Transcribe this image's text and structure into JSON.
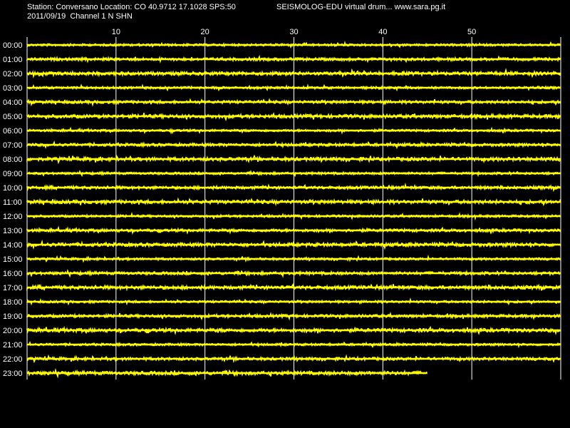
{
  "header": {
    "station": "Station: Conversano Location: CO 40.9712 17.1028 SPS:50",
    "brand": "SEISMOLOG-EDU virtual drum... www.sara.pg.it",
    "date_channel": "2011/09/19  Channel 1 N SHN"
  },
  "colors": {
    "background": "#000000",
    "trace": "#ffff00",
    "grid": "#ffffff",
    "text": "#ffffff"
  },
  "chart_data": {
    "type": "line",
    "title": "",
    "xlabel": "",
    "ylabel": "",
    "grid": true,
    "x_unit_note": "minutes",
    "xlim": [
      0,
      60
    ],
    "x_ticks": [
      10,
      20,
      30,
      40,
      50
    ],
    "rows": [
      {
        "label": "00:00",
        "end_minute": 60
      },
      {
        "label": "01:00",
        "end_minute": 60
      },
      {
        "label": "02:00",
        "end_minute": 60
      },
      {
        "label": "03:00",
        "end_minute": 60
      },
      {
        "label": "04:00",
        "end_minute": 60
      },
      {
        "label": "05:00",
        "end_minute": 60
      },
      {
        "label": "06:00",
        "end_minute": 60
      },
      {
        "label": "07:00",
        "end_minute": 60
      },
      {
        "label": "08:00",
        "end_minute": 60
      },
      {
        "label": "09:00",
        "end_minute": 60
      },
      {
        "label": "10:00",
        "end_minute": 60
      },
      {
        "label": "11:00",
        "end_minute": 60
      },
      {
        "label": "12:00",
        "end_minute": 60
      },
      {
        "label": "13:00",
        "end_minute": 60
      },
      {
        "label": "14:00",
        "end_minute": 60
      },
      {
        "label": "15:00",
        "end_minute": 60
      },
      {
        "label": "16:00",
        "end_minute": 60
      },
      {
        "label": "17:00",
        "end_minute": 60
      },
      {
        "label": "18:00",
        "end_minute": 60
      },
      {
        "label": "19:00",
        "end_minute": 60
      },
      {
        "label": "20:00",
        "end_minute": 60
      },
      {
        "label": "21:00",
        "end_minute": 60
      },
      {
        "label": "22:00",
        "end_minute": 60
      },
      {
        "label": "23:00",
        "end_minute": 45
      }
    ]
  }
}
